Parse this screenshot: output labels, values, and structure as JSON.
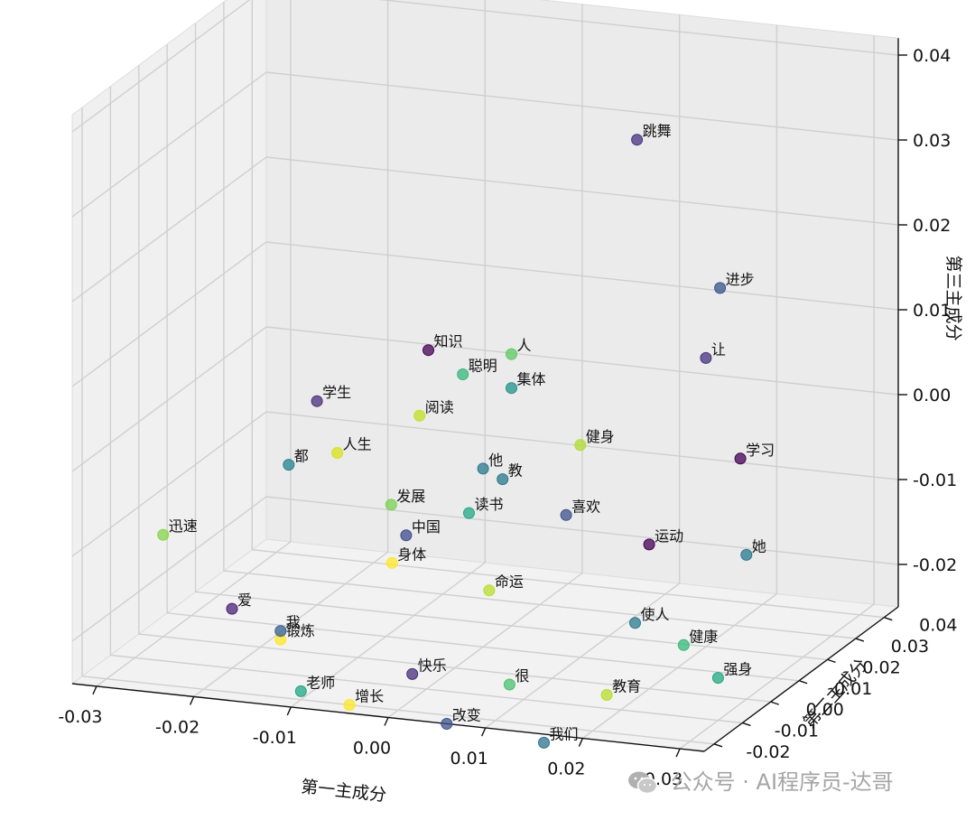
{
  "chart_data": {
    "type": "scatter",
    "projection": "3d",
    "xlabel": "第一主成分",
    "ylabel": "第二主成分",
    "zlabel": "第三主成分",
    "grid": true,
    "xticks": [
      "-0.03",
      "-0.02",
      "-0.01",
      "0.00",
      "0.01",
      "0.02",
      "0.03"
    ],
    "yticks": [
      "-0.02",
      "-0.01",
      "0.00",
      "0.01",
      "0.02",
      "0.03",
      "0.04"
    ],
    "zticks": [
      "-0.02",
      "-0.01",
      "0.00",
      "0.01",
      "0.02",
      "0.03",
      "0.04"
    ],
    "points": [
      {
        "label": "跳舞",
        "x": 0.01,
        "y": 0.03,
        "z": 0.031,
        "color": "#46327e"
      },
      {
        "label": "进步",
        "x": 0.02,
        "y": 0.025,
        "z": 0.016,
        "color": "#3b528b"
      },
      {
        "label": "让",
        "x": 0.02,
        "y": 0.02,
        "z": 0.009,
        "color": "#46327e"
      },
      {
        "label": "知识",
        "x": -0.01,
        "y": 0.025,
        "z": 0.005,
        "color": "#440154"
      },
      {
        "label": "人",
        "x": 0.0,
        "y": 0.02,
        "z": 0.007,
        "color": "#5ec962"
      },
      {
        "label": "聪明",
        "x": -0.005,
        "y": 0.02,
        "z": 0.004,
        "color": "#35b779"
      },
      {
        "label": "集体",
        "x": 0.0,
        "y": 0.02,
        "z": 0.003,
        "color": "#21918c"
      },
      {
        "label": "健身",
        "x": 0.01,
        "y": 0.01,
        "z": 0.0,
        "color": "#addc30"
      },
      {
        "label": "阅读",
        "x": -0.008,
        "y": 0.015,
        "z": 0.0,
        "color": "#c2df23"
      },
      {
        "label": "学生",
        "x": -0.02,
        "y": 0.02,
        "z": -0.001,
        "color": "#472d7b"
      },
      {
        "label": "学习",
        "x": 0.025,
        "y": 0.015,
        "z": -0.001,
        "color": "#440154"
      },
      {
        "label": "他",
        "x": 0.0,
        "y": 0.01,
        "z": -0.004,
        "color": "#2a788e"
      },
      {
        "label": "都",
        "x": -0.02,
        "y": 0.01,
        "z": -0.006,
        "color": "#26828e"
      },
      {
        "label": "人生",
        "x": -0.015,
        "y": 0.01,
        "z": -0.004,
        "color": "#d8e219"
      },
      {
        "label": "教",
        "x": 0.002,
        "y": 0.01,
        "z": -0.005,
        "color": "#2a788e"
      },
      {
        "label": "发展",
        "x": -0.008,
        "y": 0.005,
        "z": -0.008,
        "color": "#7ad151"
      },
      {
        "label": "读书",
        "x": 0.0,
        "y": 0.005,
        "z": -0.008,
        "color": "#22a884"
      },
      {
        "label": "中国",
        "x": -0.005,
        "y": 0.0,
        "z": -0.01,
        "color": "#3e4989"
      },
      {
        "label": "喜欢",
        "x": 0.01,
        "y": 0.005,
        "z": -0.007,
        "color": "#3b528b"
      },
      {
        "label": "运动",
        "x": 0.02,
        "y": 0.0,
        "z": -0.008,
        "color": "#440154"
      },
      {
        "label": "她",
        "x": 0.03,
        "y": 0.0,
        "z": -0.008,
        "color": "#2a788e"
      },
      {
        "label": "迅速",
        "x": -0.03,
        "y": 0.0,
        "z": -0.013,
        "color": "#86d549"
      },
      {
        "label": "身体",
        "x": -0.005,
        "y": -0.005,
        "z": -0.012,
        "color": "#fde725"
      },
      {
        "label": "命运",
        "x": 0.005,
        "y": -0.005,
        "z": -0.014,
        "color": "#b5de2b"
      },
      {
        "label": "爱",
        "x": -0.02,
        "y": -0.01,
        "z": -0.018,
        "color": "#482173"
      },
      {
        "label": "使人",
        "x": 0.02,
        "y": -0.005,
        "z": -0.016,
        "color": "#2a788e"
      },
      {
        "label": "健康",
        "x": 0.025,
        "y": -0.005,
        "z": -0.018,
        "color": "#35b779"
      },
      {
        "label": "强身",
        "x": 0.03,
        "y": -0.01,
        "z": -0.02,
        "color": "#22a884"
      },
      {
        "label": "锻炼",
        "x": -0.015,
        "y": -0.01,
        "z": -0.021,
        "color": "#fde725"
      },
      {
        "label": "我",
        "x": -0.015,
        "y": -0.01,
        "z": -0.02,
        "color": "#355f8d"
      },
      {
        "label": "快乐",
        "x": 0.0,
        "y": -0.015,
        "z": -0.022,
        "color": "#472d7b"
      },
      {
        "label": "很",
        "x": 0.01,
        "y": -0.015,
        "z": -0.022,
        "color": "#4ac16d"
      },
      {
        "label": "教育",
        "x": 0.02,
        "y": -0.015,
        "z": -0.022,
        "color": "#b5de2b"
      },
      {
        "label": "老师",
        "x": -0.01,
        "y": -0.02,
        "z": -0.024,
        "color": "#20a486"
      },
      {
        "label": "增长",
        "x": -0.005,
        "y": -0.02,
        "z": -0.025,
        "color": "#fde725"
      },
      {
        "label": "改变",
        "x": 0.005,
        "y": -0.02,
        "z": -0.026,
        "color": "#3b528b"
      },
      {
        "label": "我们",
        "x": 0.015,
        "y": -0.02,
        "z": -0.027,
        "color": "#2c728e"
      }
    ]
  },
  "watermark": {
    "text": "公众号 · AI程序员-达哥",
    "icon": "wechat-icon"
  }
}
